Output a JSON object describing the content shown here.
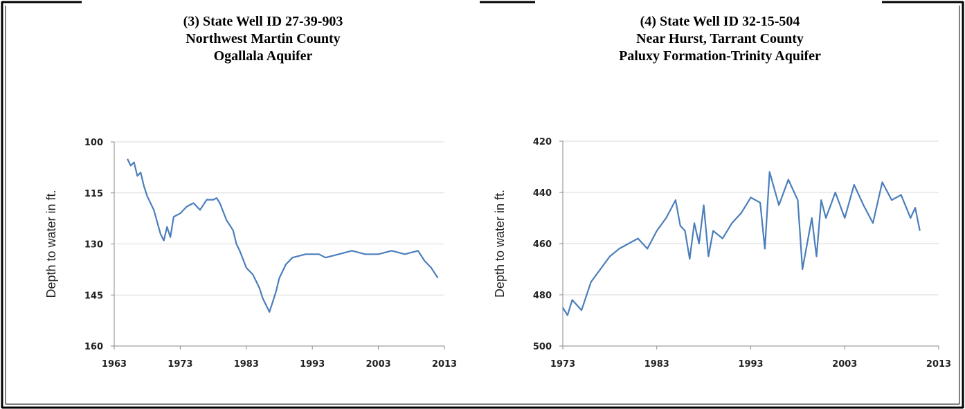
{
  "chart_data": [
    {
      "type": "line",
      "title": [
        "(3) State Well ID 27-39-903",
        "Northwest Martin County",
        "Ogallala Aquifer"
      ],
      "y_label": "Depth to water in ft.",
      "x": [
        1965,
        1965.5,
        1966,
        1966.5,
        1967,
        1967.5,
        1968,
        1969,
        1970,
        1970.5,
        1971,
        1971.5,
        1972,
        1973,
        1974,
        1975,
        1976,
        1977,
        1978,
        1978.5,
        1979,
        1980,
        1981,
        1981.5,
        1982,
        1983,
        1984,
        1985,
        1985.5,
        1986,
        1986.5,
        1987,
        1987.5,
        1988,
        1989,
        1990,
        1992,
        1994,
        1995,
        1997,
        1999,
        2001,
        2003,
        2005,
        2007,
        2009,
        2010,
        2011,
        2012
      ],
      "series": [
        {
          "color": "#4a7ebb",
          "values": [
            105,
            107,
            106,
            110,
            109,
            113,
            116,
            120,
            127,
            129,
            125,
            128,
            122,
            121,
            119,
            118,
            120,
            117,
            117,
            116.5,
            118,
            123,
            126,
            130,
            132,
            137,
            139,
            143,
            146,
            148,
            150,
            147,
            144,
            140,
            136,
            134,
            133,
            133,
            134,
            133,
            132,
            133,
            133,
            132,
            133,
            132,
            135,
            137,
            140
          ]
        }
      ],
      "xlim": [
        1963,
        2013
      ],
      "xticks": [
        1963,
        1973,
        1983,
        1993,
        2003,
        2013
      ],
      "ylim": [
        100,
        160
      ],
      "yticks": [
        100,
        115,
        130,
        145,
        160
      ],
      "y_inverted": true,
      "grid": true
    },
    {
      "type": "line",
      "title": [
        "(4) State Well ID 32-15-504",
        "Near Hurst, Tarrant County",
        "Paluxy Formation-Trinity Aquifer"
      ],
      "y_label": "Depth to water in ft.",
      "x": [
        1973,
        1973.5,
        1974,
        1975,
        1976,
        1977,
        1978,
        1979,
        1980,
        1981,
        1982,
        1983,
        1984,
        1985,
        1985.5,
        1986,
        1986.5,
        1987,
        1987.5,
        1988,
        1988.5,
        1989,
        1990,
        1991,
        1992,
        1993,
        1994,
        1994.5,
        1995,
        1996,
        1997,
        1998,
        1998.5,
        1999,
        1999.5,
        2000,
        2000.5,
        2001,
        2002,
        2003,
        2004,
        2005,
        2006,
        2007,
        2008,
        2009,
        2010,
        2010.5,
        2011
      ],
      "series": [
        {
          "color": "#4a7ebb",
          "values": [
            485,
            488,
            482,
            486,
            475,
            470,
            465,
            462,
            460,
            458,
            462,
            455,
            450,
            443,
            453,
            455,
            466,
            452,
            460,
            445,
            465,
            455,
            458,
            452,
            448,
            442,
            444,
            462,
            432,
            445,
            435,
            443,
            470,
            460,
            450,
            465,
            443,
            450,
            440,
            450,
            437,
            445,
            452,
            436,
            443,
            441,
            450,
            446,
            455
          ]
        }
      ],
      "xlim": [
        1973,
        2013
      ],
      "xticks": [
        1973,
        1983,
        1993,
        2003,
        2013
      ],
      "ylim": [
        420,
        500
      ],
      "yticks": [
        420,
        440,
        460,
        480,
        500
      ],
      "y_inverted": true,
      "grid": true
    }
  ]
}
